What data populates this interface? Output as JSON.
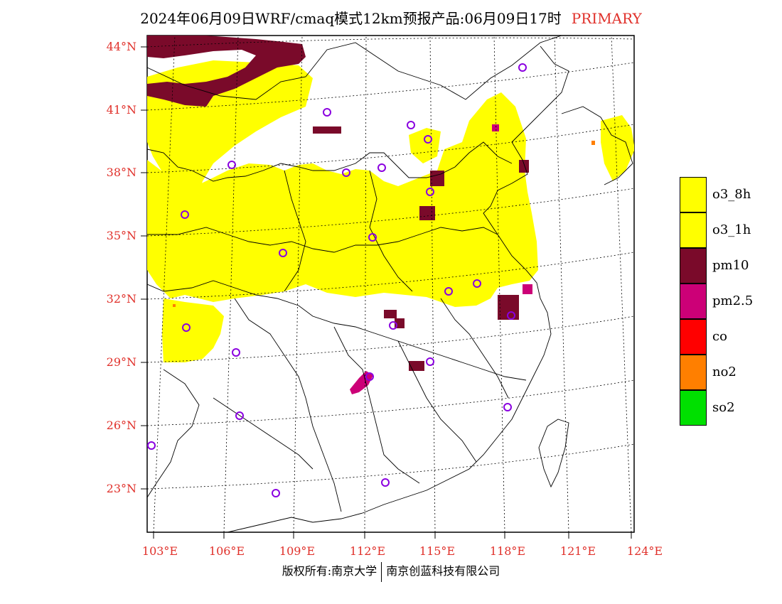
{
  "title": {
    "text": "2024年06月09日WRF/cmaq模式12km预报产品:06月09日17时",
    "tag": "PRIMARY"
  },
  "axes": {
    "lat_labels": [
      "44°N",
      "41°N",
      "38°N",
      "35°N",
      "32°N",
      "29°N",
      "26°N",
      "23°N"
    ],
    "lon_labels": [
      "103°E",
      "106°E",
      "109°E",
      "112°E",
      "115°E",
      "118°E",
      "121°E",
      "124°E"
    ],
    "label_color": "#e0302a"
  },
  "legend": [
    {
      "label": "o3_8h",
      "color": "#ffff00"
    },
    {
      "label": "o3_1h",
      "color": "#ffff00"
    },
    {
      "label": "pm10",
      "color": "#7a0a2a"
    },
    {
      "label": "pm2.5",
      "color": "#cc0077"
    },
    {
      "label": "co",
      "color": "#ff0000"
    },
    {
      "label": "no2",
      "color": "#ff7f00"
    },
    {
      "label": "so2",
      "color": "#00e000"
    }
  ],
  "footer": {
    "left": "版权所有:南京大学",
    "right": "南京创蓝科技有限公司"
  }
}
